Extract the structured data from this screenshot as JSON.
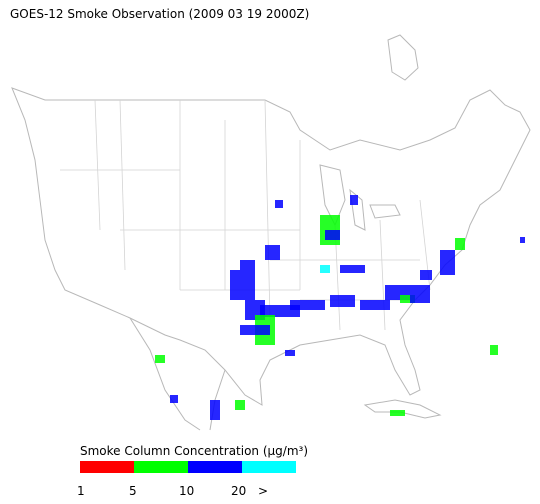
{
  "title": "GOES-12 Smoke Observation (2009 03 19  2000Z)",
  "legend": {
    "title": "Smoke Column Concentration (μg/m³)",
    "colors": [
      "#ff0000",
      "#00ff00",
      "#0000ff",
      "#00ffff"
    ],
    "labels": [
      "1",
      "5",
      "10",
      "20",
      ">"
    ]
  }
}
